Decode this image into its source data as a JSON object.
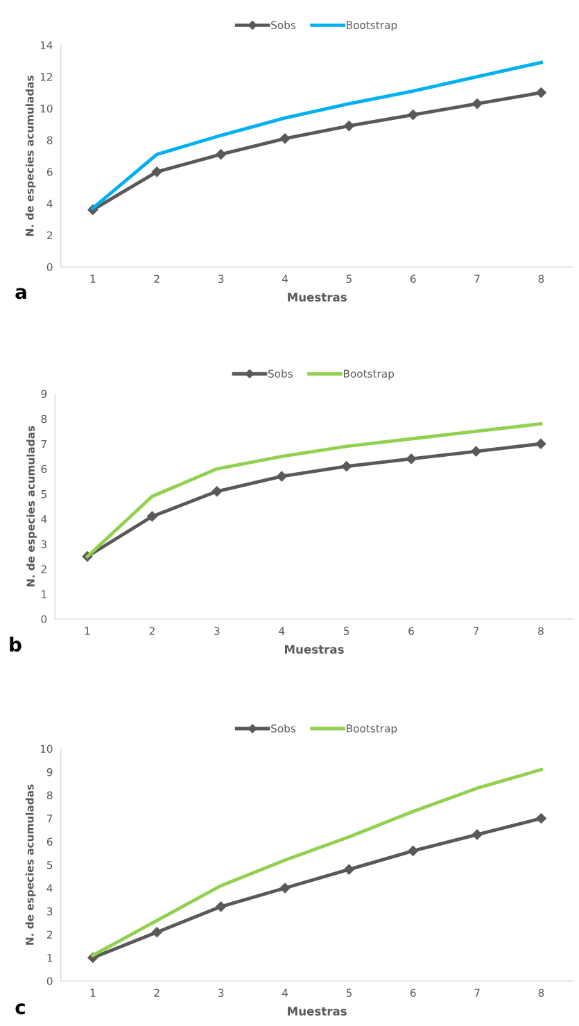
{
  "chart_data": [
    {
      "type": "line",
      "xlabel": "Muestras",
      "ylabel": "N. de especies acumuladas",
      "annotations": [
        "a"
      ],
      "categories": [
        "1",
        "2",
        "3",
        "4",
        "5",
        "6",
        "7",
        "8"
      ],
      "ylim": [
        0,
        14
      ],
      "yticks": [
        0,
        2,
        4,
        6,
        8,
        10,
        12,
        14
      ],
      "legend": "top",
      "grid": false,
      "series": [
        {
          "name": "Sobs",
          "color": "#595959",
          "marker": "diamond",
          "values": [
            3.6,
            6.0,
            7.1,
            8.1,
            8.9,
            9.6,
            10.3,
            11.0
          ]
        },
        {
          "name": "Bootstrap",
          "color": "#00b0f0",
          "marker": "none",
          "values": [
            3.7,
            7.1,
            8.3,
            9.4,
            10.3,
            11.1,
            12.0,
            12.9
          ]
        }
      ]
    },
    {
      "type": "line",
      "xlabel": "Muestras",
      "ylabel": "N. de especies acumuladas",
      "annotations": [
        "b"
      ],
      "categories": [
        "1",
        "2",
        "3",
        "4",
        "5",
        "6",
        "7",
        "8"
      ],
      "ylim": [
        0,
        9
      ],
      "yticks": [
        0,
        1,
        2,
        3,
        4,
        5,
        6,
        7,
        8,
        9
      ],
      "legend": "top",
      "grid": false,
      "series": [
        {
          "name": "Sobs",
          "color": "#595959",
          "marker": "diamond",
          "values": [
            2.5,
            4.1,
            5.1,
            5.7,
            6.1,
            6.4,
            6.7,
            7.0
          ]
        },
        {
          "name": "Bootstrap",
          "color": "#92d050",
          "marker": "none",
          "values": [
            2.5,
            4.9,
            6.0,
            6.5,
            6.9,
            7.2,
            7.5,
            7.8
          ]
        }
      ]
    },
    {
      "type": "line",
      "xlabel": "Muestras",
      "ylabel": "N. de especies acumuladas",
      "annotations": [
        "c"
      ],
      "categories": [
        "1",
        "2",
        "3",
        "4",
        "5",
        "6",
        "7",
        "8"
      ],
      "ylim": [
        0,
        10
      ],
      "yticks": [
        0,
        1,
        2,
        3,
        4,
        5,
        6,
        7,
        8,
        9,
        10
      ],
      "legend": "top",
      "grid": false,
      "series": [
        {
          "name": "Sobs",
          "color": "#595959",
          "marker": "diamond",
          "values": [
            1.0,
            2.1,
            3.2,
            4.0,
            4.8,
            5.6,
            6.3,
            7.0
          ]
        },
        {
          "name": "Bootstrap",
          "color": "#92d050",
          "marker": "none",
          "values": [
            1.1,
            2.6,
            4.1,
            5.2,
            6.2,
            7.3,
            8.3,
            9.1
          ]
        }
      ]
    }
  ]
}
